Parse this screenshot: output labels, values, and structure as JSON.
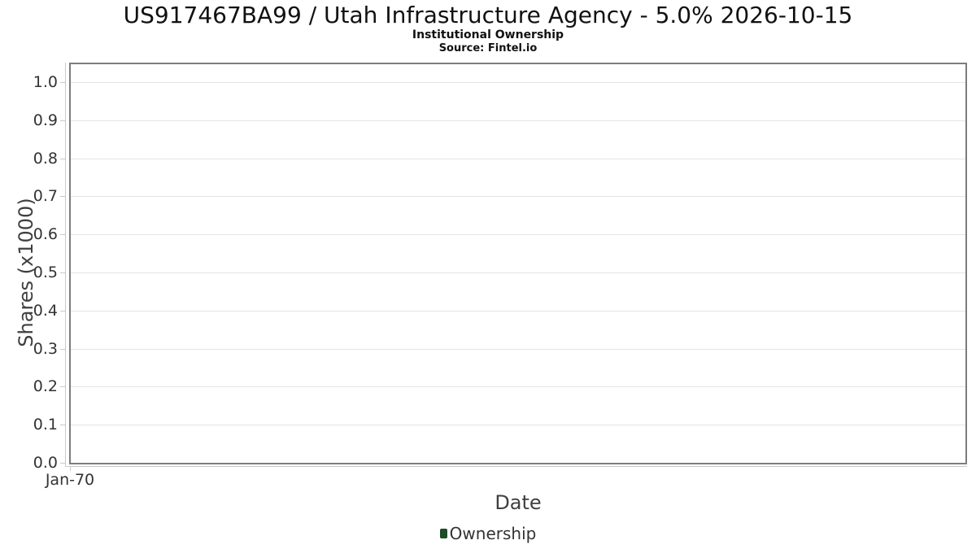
{
  "chart_data": {
    "type": "column",
    "title": "US917467BA99 / Utah Infrastructure Agency - 5.0% 2026-10-15",
    "subtitle": "Institutional Ownership",
    "source": "Source: Fintel.io",
    "xlabel": "Date",
    "ylabel": "Shares (x1000)",
    "x_tick_labels": [
      "Jan-70"
    ],
    "y_ticks": [
      0.0,
      0.1,
      0.2,
      0.3,
      0.4,
      0.5,
      0.6,
      0.7,
      0.8,
      0.9,
      1.0
    ],
    "ylim": [
      0,
      1.047
    ],
    "grid": true,
    "legend_position": "bottom-center",
    "series": [
      {
        "name": "Ownership",
        "color": "#1f4d26",
        "x": [],
        "values": []
      }
    ]
  },
  "styles": {
    "series_green": "#1f4d26",
    "plot_border": "#7d7d7d",
    "gridline": "#e4e4e4",
    "axis_line": "#c9c9c9",
    "tick_label_color": "#333333",
    "axis_title_color": "#3f3f3f",
    "title_color": "#111111",
    "background": "#ffffff"
  }
}
